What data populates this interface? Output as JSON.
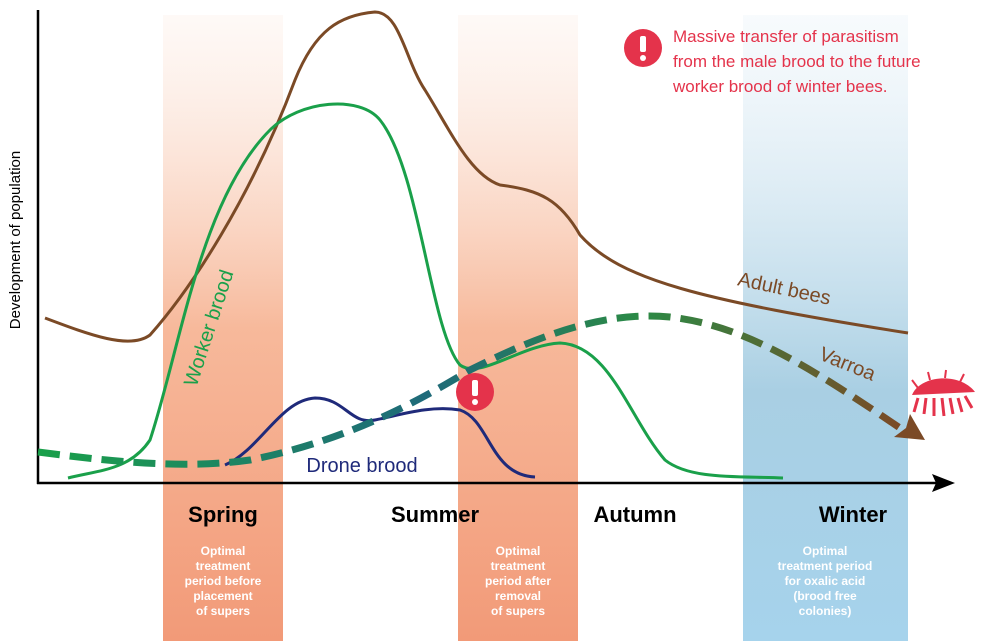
{
  "y_axis_label": "Development of population",
  "seasons": [
    "Spring",
    "Summer",
    "Autumn",
    "Winter"
  ],
  "treatment_periods": [
    {
      "lines": [
        "Optimal",
        "treatment",
        "period before",
        "placement",
        "of supers"
      ]
    },
    {
      "lines": [
        "Optimal",
        "treatment",
        "period after",
        "removal",
        "of supers"
      ]
    },
    {
      "lines": [
        "Optimal",
        "treatment period",
        "for oxalic acid",
        "(brood free",
        "colonies)"
      ]
    }
  ],
  "curve_labels": {
    "worker_brood": "Worker brood",
    "drone_brood": "Drone brood",
    "adult_bees": "Adult bees",
    "varroa": "Varroa"
  },
  "annotation": {
    "lines": [
      "Massive transfer of parasitism",
      "from the male brood to the future",
      "worker brood of winter bees."
    ]
  }
}
